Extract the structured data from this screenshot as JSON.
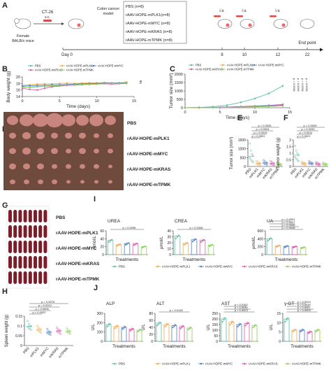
{
  "panels": {
    "A": "A",
    "B": "B",
    "C": "C",
    "D": "D",
    "E": "E",
    "F": "F",
    "G": "G",
    "H": "H",
    "I": "I",
    "J": "J"
  },
  "colors": {
    "PBS": "#5bbfa8",
    "mPLK1": "#f3a94f",
    "mMYC": "#4f7fc2",
    "mKRAS": "#d95ba8",
    "mTPMK": "#8ccf5a",
    "photo_bg": "#6e4b3c",
    "tumor": "#c9867e",
    "spleen": "#7a1f2a"
  },
  "timeline": {
    "cells": "CT-26",
    "route": "s.c.",
    "mice": "Female\nBALB/c mice",
    "model": "Colon cancer\nmodel",
    "groups": [
      "PBS (n=8)",
      "rAAV-HOPE-mPLK1(n=8)",
      "rAAV-HOPE-mMYC (n=8)",
      "rAAV-HOPE-mKRAS (n=8)",
      "rAAV-HOPE-mTPMK (n=8)"
    ],
    "iv": [
      "i.v.",
      "i.v.",
      "i.v."
    ],
    "days": [
      "Day 0",
      "8",
      "10",
      "12",
      "22"
    ],
    "endpoint": "End point"
  },
  "legend_groups": [
    "PBS",
    "rAAV-HOPE-mPLK1",
    "rAAV-HOPE-mMYC",
    "rAAV-HOPE-mKRAS",
    "rAAV-HOPE-mTPMK"
  ],
  "photo_labels": [
    "PBS",
    "rAAV-HOPE-mPLK1",
    "rAAV-HOPE-mMYC",
    "rAAV-HOPE-mKRAS",
    "rAAV-HOPE-mTPMK"
  ],
  "chart_data": [
    {
      "id": "B",
      "type": "line",
      "xlabel": "Time (days)",
      "ylabel": "Body weight (g)",
      "xlim": [
        0,
        15
      ],
      "ylim": [
        14,
        20
      ],
      "xticks": [
        0,
        5,
        10,
        15
      ],
      "yticks": [
        14,
        16,
        18,
        20
      ],
      "x": [
        0,
        1,
        2,
        3,
        4,
        5,
        6,
        7,
        8,
        9,
        10,
        11,
        12,
        13,
        14
      ],
      "series": [
        {
          "name": "PBS",
          "values": [
            17.0,
            16.8,
            17.0,
            17.1,
            17.2,
            17.4,
            17.5,
            17.6,
            17.7,
            17.8,
            17.9,
            18.0,
            18.1,
            18.0,
            18.3
          ]
        },
        {
          "name": "rAAV-HOPE-mPLK1",
          "values": [
            17.5,
            17.6,
            17.8,
            17.9,
            17.9,
            18.0,
            18.1,
            18.0,
            18.1,
            18.2,
            18.2,
            18.3,
            18.2,
            18.1,
            18.4
          ]
        },
        {
          "name": "rAAV-HOPE-mMYC",
          "values": [
            17.2,
            17.3,
            17.4,
            17.5,
            17.6,
            17.6,
            17.7,
            17.8,
            17.9,
            18.0,
            18.0,
            18.1,
            18.1,
            18.2,
            18.3
          ]
        },
        {
          "name": "rAAV-HOPE-mKRAS",
          "values": [
            16.5,
            16.2,
            16.0,
            16.5,
            17.0,
            17.2,
            17.4,
            17.5,
            17.6,
            17.7,
            17.8,
            17.9,
            17.8,
            17.9,
            18.0
          ]
        },
        {
          "name": "rAAV-HOPE-mTPMK",
          "values": [
            16.8,
            16.9,
            17.1,
            17.2,
            17.3,
            17.4,
            17.5,
            17.6,
            17.7,
            17.8,
            17.8,
            17.9,
            18.0,
            18.0,
            18.2
          ]
        }
      ],
      "annotations": [
        "ns"
      ]
    },
    {
      "id": "C",
      "type": "line",
      "xlabel": "Time (days)",
      "ylabel": "Tumor size (mm³)",
      "xlim": [
        0,
        15
      ],
      "ylim": [
        0,
        2000
      ],
      "xticks": [
        0,
        5,
        10,
        15
      ],
      "yticks": [
        0,
        500,
        1000,
        1500,
        2000
      ],
      "x": [
        0,
        2,
        4,
        6,
        8,
        10,
        12,
        14
      ],
      "series": [
        {
          "name": "PBS",
          "values": [
            0,
            20,
            60,
            150,
            320,
            550,
            850,
            1300
          ]
        },
        {
          "name": "rAAV-HOPE-mPLK1",
          "values": [
            0,
            10,
            20,
            40,
            60,
            90,
            120,
            160
          ]
        },
        {
          "name": "rAAV-HOPE-mMYC",
          "values": [
            0,
            10,
            25,
            45,
            70,
            100,
            140,
            190
          ]
        },
        {
          "name": "rAAV-HOPE-mKRAS",
          "values": [
            0,
            10,
            20,
            35,
            55,
            80,
            110,
            150
          ]
        },
        {
          "name": "rAAV-HOPE-mTPMK",
          "values": [
            0,
            5,
            15,
            25,
            40,
            55,
            75,
            100
          ]
        }
      ],
      "annotations": [
        "p = 0.0001",
        "p = 0.0001",
        "p = 0.0001",
        "p = 0.0001"
      ]
    },
    {
      "id": "E",
      "type": "scatter",
      "ylabel": "Tumor size (mm³)",
      "ylim": [
        0,
        1500
      ],
      "yticks": [
        0,
        500,
        1000,
        1500
      ],
      "categories": [
        "PBS",
        "mPLK1",
        "mMYC",
        "mKRAS",
        "mTPMK"
      ],
      "means": [
        580,
        180,
        200,
        170,
        120
      ],
      "points": [
        [
          1300,
          900,
          700,
          600,
          500,
          400,
          300,
          250
        ],
        [
          300,
          250,
          200,
          180,
          150,
          120,
          100,
          90
        ],
        [
          350,
          280,
          220,
          200,
          180,
          150,
          120,
          100
        ],
        [
          300,
          240,
          200,
          170,
          140,
          120,
          100,
          80
        ],
        [
          220,
          180,
          150,
          120,
          100,
          80,
          60,
          50
        ]
      ],
      "annotations": [
        "p = 0.0026",
        "p = 0.0024",
        "p = 0.0019",
        "p = 0.0001"
      ]
    },
    {
      "id": "F",
      "type": "scatter",
      "ylabel": "Tumor weight (g)",
      "ylim": [
        0,
        2.0
      ],
      "yticks": [
        0,
        0.5,
        1.0,
        1.5,
        2.0
      ],
      "categories": [
        "PBS",
        "mPLK1",
        "mMYC",
        "mKRAS",
        "mTPMK"
      ],
      "means": [
        0.85,
        0.22,
        0.25,
        0.2,
        0.18
      ],
      "points": [
        [
          1.55,
          1.2,
          1.0,
          0.85,
          0.7,
          0.6,
          0.5,
          0.4
        ],
        [
          0.35,
          0.3,
          0.25,
          0.22,
          0.2,
          0.18,
          0.15,
          0.12
        ],
        [
          0.4,
          0.32,
          0.28,
          0.25,
          0.22,
          0.2,
          0.18,
          0.15
        ],
        [
          0.32,
          0.28,
          0.24,
          0.2,
          0.18,
          0.15,
          0.12,
          0.1
        ],
        [
          0.3,
          0.25,
          0.2,
          0.18,
          0.15,
          0.12,
          0.1,
          0.08
        ]
      ],
      "annotations": [
        "p = 0.0039",
        "p = 0.0033",
        "p = 0.0011",
        "p = 0.0021"
      ]
    },
    {
      "id": "H",
      "type": "scatter",
      "ylabel": "Spleen weight (g)",
      "ylim": [
        0,
        0.15
      ],
      "yticks": [
        0,
        0.05,
        0.1,
        0.15
      ],
      "categories": [
        "PBS",
        "mPLK1",
        "mMYC",
        "mKRAS",
        "mTPMK"
      ],
      "means": [
        0.098,
        0.082,
        0.068,
        0.075,
        0.072
      ],
      "points": [
        [
          0.125,
          0.11,
          0.1,
          0.098,
          0.095,
          0.09,
          0.085,
          0.08
        ],
        [
          0.1,
          0.09,
          0.085,
          0.08,
          0.078,
          0.075,
          0.07,
          0.065
        ],
        [
          0.085,
          0.075,
          0.07,
          0.068,
          0.065,
          0.06,
          0.058,
          0.055
        ],
        [
          0.09,
          0.082,
          0.078,
          0.075,
          0.072,
          0.07,
          0.065,
          0.06
        ],
        [
          0.088,
          0.08,
          0.075,
          0.072,
          0.07,
          0.068,
          0.064,
          0.06
        ]
      ],
      "annotations": [
        "p = 0.0075",
        "p = 0.0012",
        "p = 0.0005",
        "p = 0.0022"
      ]
    },
    {
      "id": "I1",
      "type": "bar",
      "title": "UREA",
      "ylabel": "mmol/L",
      "xlabel": "Treatments",
      "ylim": [
        0,
        60
      ],
      "yticks": [
        0,
        20,
        40,
        60
      ],
      "categories": [
        "PBS",
        "mPLK1",
        "mMYC",
        "mKRAS",
        "mTPMK"
      ],
      "values": [
        36,
        25,
        28,
        27,
        20
      ],
      "annotations": [
        "p = 0.0296"
      ]
    },
    {
      "id": "I2",
      "type": "bar",
      "title": "CREA",
      "ylabel": "μmol/L",
      "xlabel": "Treatments",
      "ylim": [
        0,
        40
      ],
      "yticks": [
        0,
        10,
        20,
        30,
        40
      ],
      "categories": [
        "PBS",
        "mPLK1",
        "mMYC",
        "mKRAS",
        "mTPMK"
      ],
      "values": [
        31,
        19,
        25,
        24,
        16
      ],
      "annotations": [
        "p = 0.0348"
      ]
    },
    {
      "id": "I3",
      "type": "bar",
      "title": "UA",
      "ylabel": "μmol/L",
      "xlabel": "Treatments",
      "ylim": [
        0,
        600
      ],
      "yticks": [
        0,
        200,
        400,
        600
      ],
      "categories": [
        "PBS",
        "mPLK1",
        "mMYC",
        "mKRAS",
        "mTPMK"
      ],
      "values": [
        400,
        220,
        210,
        200,
        180
      ],
      "annotations": [
        "p = 0.0048",
        "p = 0.0045",
        "p = 0.0027",
        "p = 0.0001"
      ]
    },
    {
      "id": "J1",
      "type": "bar",
      "title": "ALP",
      "ylabel": "U/L",
      "xlabel": "Treatments",
      "ylim": [
        0,
        300
      ],
      "yticks": [
        0,
        100,
        200,
        300
      ],
      "categories": [
        "PBS",
        "mPLK1",
        "mMYC",
        "mKRAS",
        "mTPMK"
      ],
      "values": [
        180,
        160,
        150,
        130,
        120
      ],
      "annotations": []
    },
    {
      "id": "J2",
      "type": "bar",
      "title": "ALT",
      "ylabel": "U/L",
      "xlabel": "Treatments",
      "ylim": [
        0,
        80
      ],
      "yticks": [
        0,
        20,
        40,
        60,
        80
      ],
      "categories": [
        "PBS",
        "mPLK1",
        "mMYC",
        "mKRAS",
        "mTPMK"
      ],
      "values": [
        52,
        48,
        45,
        42,
        38
      ],
      "annotations": [
        "p = 0.0126"
      ]
    },
    {
      "id": "J3",
      "type": "bar",
      "title": "AST",
      "ylabel": "U/L",
      "xlabel": "Treatments",
      "ylim": [
        0,
        250
      ],
      "yticks": [
        0,
        50,
        100,
        150,
        200,
        250
      ],
      "categories": [
        "PBS",
        "mPLK1",
        "mMYC",
        "mKRAS",
        "mTPMK"
      ],
      "values": [
        200,
        170,
        150,
        160,
        140
      ],
      "annotations": [
        "p = 0.0023",
        "p = 0.0030",
        "p = 0.0162"
      ]
    },
    {
      "id": "J4",
      "type": "bar",
      "title": "γ-GT",
      "ylabel": "U/L",
      "xlabel": "Treatments",
      "ylim": [
        0,
        15
      ],
      "yticks": [
        0,
        5,
        10,
        15
      ],
      "categories": [
        "PBS",
        "mPLK1",
        "mMYC",
        "mKRAS",
        "mTPMK"
      ],
      "values": [
        12,
        6,
        6,
        5,
        6
      ],
      "annotations": [
        "p = 0.0003",
        "p = 0.0007",
        "p = 0.0015",
        "p = 0.0014"
      ]
    }
  ]
}
